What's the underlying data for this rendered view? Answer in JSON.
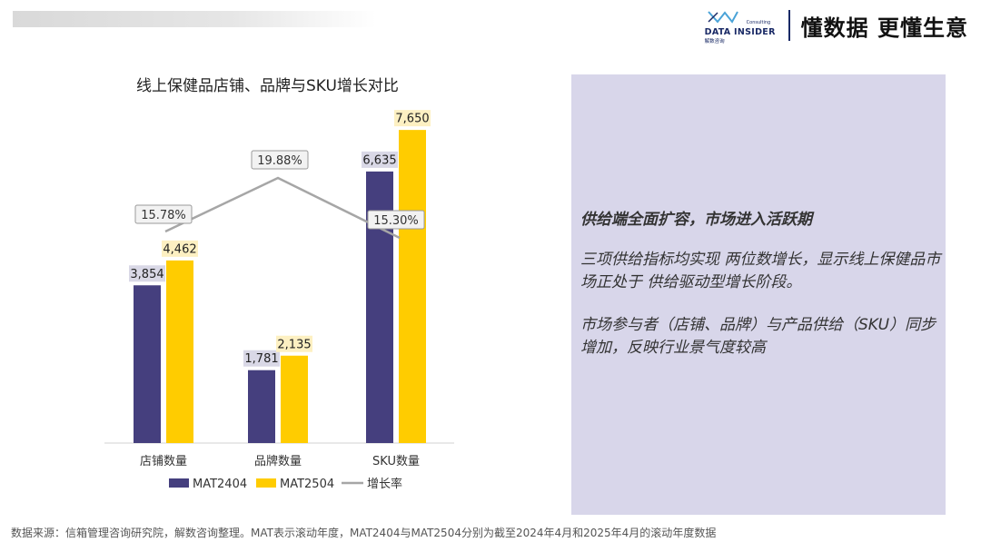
{
  "header": {
    "brand_name": "DATA INSIDER",
    "brand_consulting": "Consulting",
    "brand_cn": "解数咨询",
    "slogan": "懂数据 更懂生意"
  },
  "chart_data": {
    "type": "bar",
    "title": "线上保健品店铺、品牌与SKU增长对比",
    "categories": [
      "店铺数量",
      "品牌数量",
      "SKU数量"
    ],
    "series": [
      {
        "name": "MAT2404",
        "values": [
          3854,
          1781,
          6635
        ],
        "labels": [
          "3,854",
          "1,781",
          "6,635"
        ],
        "color": "#453f7e",
        "label_bg": "#d9d8e6"
      },
      {
        "name": "MAT2504",
        "values": [
          4462,
          2135,
          7650
        ],
        "labels": [
          "4,462",
          "2,135",
          "7,650"
        ],
        "color": "#ffcc00",
        "label_bg": "#fdf0c2"
      }
    ],
    "line_series": {
      "name": "增长率",
      "values": [
        15.78,
        19.88,
        15.3
      ],
      "labels": [
        "15.78%",
        "19.88%",
        "15.30%"
      ],
      "color": "#a6a6a6"
    },
    "ylim": [
      0,
      8000
    ],
    "legend_position": "bottom",
    "grid": false
  },
  "panel": {
    "headline": "供给端全面扩容，市场进入活跃期",
    "para1": "三项供给指标均实现 两位数增长，显示线上保健品市场正处于 供给驱动型增长阶段。",
    "para2": "市场参与者（店铺、品牌）与产品供给（SKU）同步增加，反映行业景气度较高"
  },
  "footer": {
    "source": "数据来源：信箱管理咨询研究院，解数咨询整理。MAT表示滚动年度，MAT2404与MAT2504分别为截至2024年4月和2025年4月的滚动年度数据"
  }
}
